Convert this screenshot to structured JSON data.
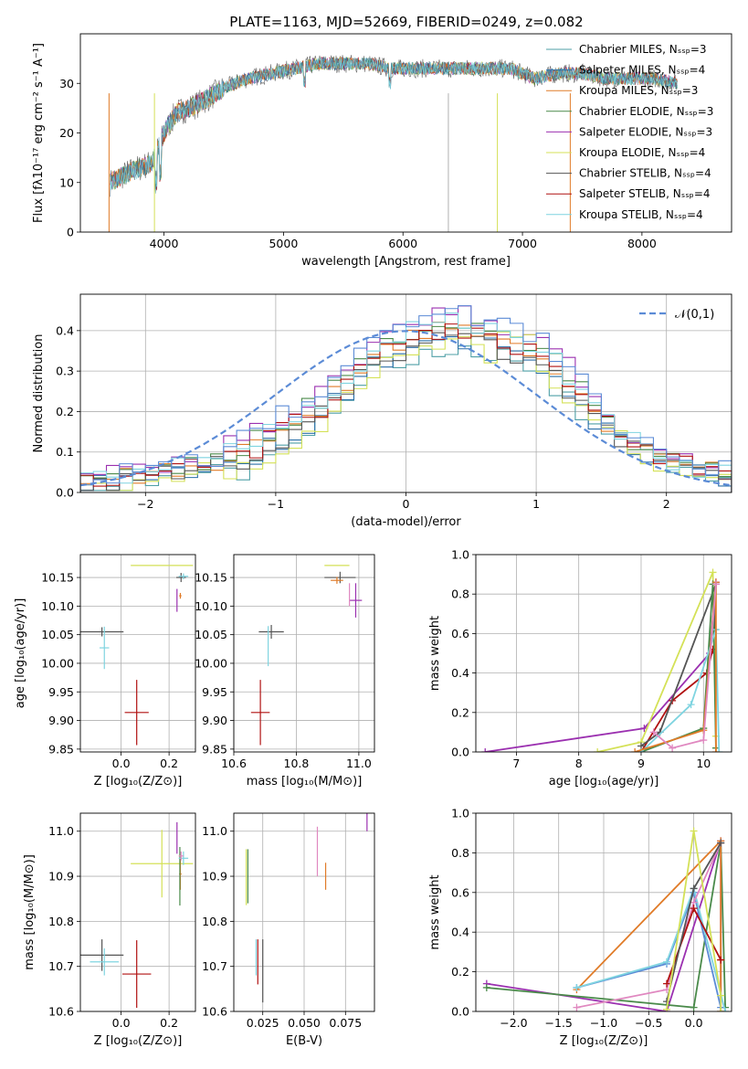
{
  "chart_data": [
    {
      "type": "line",
      "title": "PLATE=1163, MJD=52669, FIBERID=0249, z=0.082",
      "xlabel": "wavelength [Angstrom, rest frame]",
      "ylabel": "Flux [fλ10⁻¹⁷ erg cm⁻² s⁻¹ A⁻¹]",
      "xlim": [
        3300,
        8750
      ],
      "ylim": [
        0,
        40
      ],
      "xticks": [
        4000,
        5000,
        6000,
        7000,
        8000
      ],
      "yticks": [
        0,
        10,
        20,
        30
      ],
      "legend_position": "right",
      "series": [
        {
          "name": "Chabrier MILES, Nₛₛₚ=3",
          "color": "#4e9fa6"
        },
        {
          "name": "Salpeter MILES, Nₛₛₚ=4",
          "color": "#2a6fa8"
        },
        {
          "name": "Kroupa MILES, Nₛₛₚ=3",
          "color": "#e07b28"
        },
        {
          "name": "Chabrier ELODIE, Nₛₛₚ=3",
          "color": "#4a8a4a"
        },
        {
          "name": "Salpeter ELODIE, Nₛₛₚ=3",
          "color": "#9b30b0"
        },
        {
          "name": "Kroupa ELODIE, Nₛₛₚ=4",
          "color": "#d4e157"
        },
        {
          "name": "Chabrier STELIB, Nₛₛₚ=4",
          "color": "#555555"
        },
        {
          "name": "Salpeter STELIB, Nₛₛₚ=4",
          "color": "#b01010"
        },
        {
          "name": "Kroupa STELIB, Nₛₛₚ=4",
          "color": "#7fd4e0"
        }
      ],
      "spectrum_continuum": {
        "x": [
          3550,
          3700,
          3900,
          4000,
          4100,
          4300,
          4500,
          4700,
          4900,
          5100,
          5300,
          5500,
          5700,
          5900,
          6100,
          6300,
          6500,
          6700,
          6900,
          7100,
          7300,
          7500,
          7700,
          7900,
          8100,
          8300
        ],
        "y": [
          10,
          12,
          14,
          20,
          24,
          26,
          29,
          31,
          32,
          33,
          34,
          34,
          34,
          33,
          33,
          33,
          33,
          33,
          33,
          31,
          32,
          32,
          31,
          31,
          31,
          30
        ]
      }
    },
    {
      "type": "histogram",
      "xlabel": "(data-model)/error",
      "ylabel": "Normed distribution",
      "xlim": [
        -2.5,
        2.5
      ],
      "ylim": [
        0,
        0.49
      ],
      "xticks": [
        -2,
        -1,
        0,
        1,
        2
      ],
      "yticks": [
        0.0,
        0.1,
        0.2,
        0.3,
        0.4
      ],
      "grid": true,
      "legend_position": "top-right",
      "reference_curve": {
        "name": "𝒩(0,1)",
        "color": "#5b8bd6",
        "mean": 0,
        "sigma": 1
      },
      "bins": [
        -2.5,
        -2.4,
        -2.3,
        -2.2,
        -2.1,
        -2.0,
        -1.9,
        -1.8,
        -1.7,
        -1.6,
        -1.5,
        -1.4,
        -1.3,
        -1.2,
        -1.1,
        -1.0,
        -0.9,
        -0.8,
        -0.7,
        -0.6,
        -0.5,
        -0.4,
        -0.3,
        -0.2,
        -0.1,
        0.0,
        0.1,
        0.2,
        0.3,
        0.4,
        0.5,
        0.6,
        0.7,
        0.8,
        0.9,
        1.0,
        1.1,
        1.2,
        1.3,
        1.4,
        1.5,
        1.6,
        1.7,
        1.8,
        1.9,
        2.0,
        2.1,
        2.2,
        2.3,
        2.4,
        2.5
      ],
      "base_density": [
        0.02,
        0.025,
        0.03,
        0.035,
        0.04,
        0.045,
        0.05,
        0.055,
        0.06,
        0.065,
        0.07,
        0.08,
        0.095,
        0.11,
        0.13,
        0.15,
        0.17,
        0.19,
        0.21,
        0.24,
        0.27,
        0.3,
        0.33,
        0.35,
        0.37,
        0.38,
        0.39,
        0.4,
        0.4,
        0.4,
        0.39,
        0.38,
        0.37,
        0.36,
        0.35,
        0.33,
        0.3,
        0.27,
        0.24,
        0.2,
        0.17,
        0.14,
        0.12,
        0.1,
        0.085,
        0.075,
        0.065,
        0.055,
        0.05,
        0.045
      ]
    },
    {
      "type": "scatter",
      "xlabel": "Z [log₁₀(Z/Z⊙)]",
      "ylabel": "age  [log₁₀(age/yr)]",
      "xlim": [
        -0.17,
        0.31
      ],
      "ylim": [
        9.845,
        10.19
      ],
      "xticks": [
        0.0,
        0.2
      ],
      "yticks": [
        9.85,
        9.9,
        9.95,
        10.0,
        10.05,
        10.1,
        10.15
      ],
      "tick_labels_x": [
        "0.0",
        "0.2"
      ],
      "tick_labels_y": [
        "9.85",
        "9.90",
        "9.95",
        "10.00",
        "10.05",
        "10.10",
        "10.15"
      ],
      "grid": true,
      "points": [
        {
          "x": -0.08,
          "y": 10.055,
          "xerr": 0.09,
          "yerr": 0.008,
          "color": "#555555"
        },
        {
          "x": -0.07,
          "y": 10.027,
          "xerr": 0.02,
          "yerr": 0.037,
          "color": "#7fd4e0"
        },
        {
          "x": 0.065,
          "y": 9.914,
          "xerr": 0.05,
          "yerr": 0.057,
          "color": "#b01010"
        },
        {
          "x": 0.17,
          "y": 10.171,
          "xerr": 0.13,
          "yerr": 0.0,
          "color": "#d4e157"
        },
        {
          "x": 0.233,
          "y": 10.11,
          "xerr": 0.0,
          "yerr": 0.02,
          "color": "#9b30b0"
        },
        {
          "x": 0.247,
          "y": 10.118,
          "xerr": 0.005,
          "yerr": 0.005,
          "color": "#e07b28"
        },
        {
          "x": 0.25,
          "y": 10.15,
          "xerr": 0.02,
          "yerr": 0.008,
          "color": "#555555"
        },
        {
          "x": 0.26,
          "y": 10.152,
          "xerr": 0.02,
          "yerr": 0.005,
          "color": "#7fd4e0"
        }
      ]
    },
    {
      "type": "scatter",
      "xlabel": "mass [log₁₀(M/M⊙)]",
      "ylabel": "",
      "xlim": [
        10.6,
        11.05
      ],
      "ylim": [
        9.845,
        10.19
      ],
      "xticks": [
        10.6,
        10.8,
        11.0
      ],
      "yticks": [
        9.85,
        9.9,
        9.95,
        10.0,
        10.05,
        10.1,
        10.15
      ],
      "tick_labels_x": [
        "10.6",
        "10.8",
        "11.0"
      ],
      "tick_labels_y": [
        "9.85",
        "9.90",
        "9.95",
        "10.00",
        "10.05",
        "10.10",
        "10.15"
      ],
      "grid": true,
      "points": [
        {
          "x": 10.72,
          "y": 10.055,
          "xerr": 0.04,
          "yerr": 0.012,
          "color": "#555555"
        },
        {
          "x": 10.71,
          "y": 10.03,
          "xerr": 0.0,
          "yerr": 0.035,
          "color": "#7fd4e0"
        },
        {
          "x": 10.685,
          "y": 9.914,
          "xerr": 0.03,
          "yerr": 0.057,
          "color": "#b01010"
        },
        {
          "x": 10.93,
          "y": 10.171,
          "xerr": 0.04,
          "yerr": 0.0,
          "color": "#d4e157"
        },
        {
          "x": 10.94,
          "y": 10.15,
          "xerr": 0.05,
          "yerr": 0.01,
          "color": "#555555"
        },
        {
          "x": 10.93,
          "y": 10.145,
          "xerr": 0.02,
          "yerr": 0.006,
          "color": "#e07b28"
        },
        {
          "x": 10.99,
          "y": 10.11,
          "xerr": 0.02,
          "yerr": 0.03,
          "color": "#9b30b0"
        },
        {
          "x": 10.97,
          "y": 10.12,
          "xerr": 0.0,
          "yerr": 0.02,
          "color": "#e088c0"
        }
      ]
    },
    {
      "type": "line",
      "xlabel": "age  [log₁₀(age/yr)]",
      "ylabel": "mass weight",
      "xlim": [
        6.35,
        10.45
      ],
      "ylim": [
        0,
        1
      ],
      "xticks": [
        7,
        8,
        9,
        10
      ],
      "yticks": [
        0.0,
        0.2,
        0.4,
        0.6,
        0.8,
        1.0
      ],
      "grid": true,
      "series": [
        {
          "color": "#9b30b0",
          "x": [
            6.5,
            9.05,
            10.1,
            10.2
          ],
          "y": [
            0.0,
            0.12,
            0.5,
            0.86
          ]
        },
        {
          "color": "#d4e157",
          "x": [
            8.3,
            9.0,
            10.15,
            10.2
          ],
          "y": [
            0.0,
            0.05,
            0.91,
            0.08
          ]
        },
        {
          "color": "#b01010",
          "x": [
            9.0,
            9.5,
            10.05,
            10.15
          ],
          "y": [
            0.0,
            0.26,
            0.4,
            0.52
          ]
        },
        {
          "color": "#555555",
          "x": [
            9.0,
            9.3,
            10.2,
            10.18
          ],
          "y": [
            0.03,
            0.1,
            0.85,
            0.62
          ]
        },
        {
          "color": "#4a8a4a",
          "x": [
            9.0,
            10.0,
            10.15,
            10.2
          ],
          "y": [
            0.0,
            0.12,
            0.85,
            0.02
          ]
        },
        {
          "color": "#7fd4e0",
          "x": [
            9.0,
            9.8,
            10.2,
            10.25
          ],
          "y": [
            0.0,
            0.24,
            0.62,
            0.0
          ]
        },
        {
          "color": "#e07b28",
          "x": [
            8.9,
            10.0,
            10.2,
            10.2
          ],
          "y": [
            0.0,
            0.11,
            0.86,
            0.0
          ]
        },
        {
          "color": "#e088c0",
          "x": [
            9.2,
            9.5,
            10.0,
            10.2
          ],
          "y": [
            0.1,
            0.02,
            0.06,
            0.85
          ]
        }
      ]
    },
    {
      "type": "scatter",
      "xlabel": "Z [log₁₀(Z/Z⊙)]",
      "ylabel": "mass [log₁₀(M/M⊙)]",
      "xlim": [
        -0.17,
        0.31
      ],
      "ylim": [
        10.6,
        11.04
      ],
      "xticks": [
        0.0,
        0.2
      ],
      "yticks": [
        10.6,
        10.7,
        10.8,
        10.9,
        11.0
      ],
      "tick_labels_x": [
        "0.0",
        "0.2"
      ],
      "tick_labels_y": [
        "10.6",
        "10.7",
        "10.8",
        "10.9",
        "11.0"
      ],
      "grid": true,
      "points": [
        {
          "x": -0.08,
          "y": 10.725,
          "xerr": 0.09,
          "yerr": 0.035,
          "color": "#555555"
        },
        {
          "x": -0.07,
          "y": 10.71,
          "xerr": 0.06,
          "yerr": 0.03,
          "color": "#7fd4e0"
        },
        {
          "x": 0.065,
          "y": 10.683,
          "xerr": 0.06,
          "yerr": 0.075,
          "color": "#b01010"
        },
        {
          "x": 0.17,
          "y": 10.928,
          "xerr": 0.13,
          "yerr": 0.075,
          "color": "#d4e157"
        },
        {
          "x": 0.233,
          "y": 10.985,
          "xerr": 0.0,
          "yerr": 0.035,
          "color": "#9b30b0"
        },
        {
          "x": 0.247,
          "y": 10.905,
          "xerr": 0.005,
          "yerr": 0.035,
          "color": "#e07b28"
        },
        {
          "x": 0.245,
          "y": 10.9,
          "xerr": 0.0,
          "yerr": 0.065,
          "color": "#4a8a4a"
        },
        {
          "x": 0.26,
          "y": 10.94,
          "xerr": 0.02,
          "yerr": 0.015,
          "color": "#7fd4e0"
        },
        {
          "x": 0.25,
          "y": 10.945,
          "xerr": 0.01,
          "yerr": 0.01,
          "color": "#e088c0"
        }
      ]
    },
    {
      "type": "scatter",
      "xlabel": "E(B-V)",
      "ylabel": "",
      "xlim": [
        0.0075,
        0.0925
      ],
      "ylim": [
        10.6,
        11.04
      ],
      "xticks": [
        0.025,
        0.05,
        0.075
      ],
      "yticks": [
        10.6,
        10.7,
        10.8,
        10.9,
        11.0
      ],
      "tick_labels_x": [
        "0.025",
        "0.050",
        "0.075"
      ],
      "tick_labels_y": [
        "10.6",
        "10.7",
        "10.8",
        "10.9",
        "11.0"
      ],
      "grid": true,
      "points": [
        {
          "x": 0.015,
          "y": 10.898,
          "xerr": 0,
          "yerr": 0.062,
          "color": "#d4e157"
        },
        {
          "x": 0.016,
          "y": 10.9,
          "xerr": 0,
          "yerr": 0.06,
          "color": "#4a8a4a"
        },
        {
          "x": 0.021,
          "y": 10.72,
          "xerr": 0,
          "yerr": 0.04,
          "color": "#7fd4e0"
        },
        {
          "x": 0.022,
          "y": 10.71,
          "xerr": 0,
          "yerr": 0.05,
          "color": "#b01010"
        },
        {
          "x": 0.025,
          "y": 10.69,
          "xerr": 0,
          "yerr": 0.07,
          "color": "#555555"
        },
        {
          "x": 0.058,
          "y": 10.955,
          "xerr": 0,
          "yerr": 0.055,
          "color": "#e088c0"
        },
        {
          "x": 0.063,
          "y": 10.9,
          "xerr": 0,
          "yerr": 0.03,
          "color": "#e07b28"
        },
        {
          "x": 0.088,
          "y": 11.07,
          "xerr": 0,
          "yerr": 0.07,
          "color": "#9b30b0"
        }
      ]
    },
    {
      "type": "line",
      "xlabel": "Z [log₁₀(Z/Z⊙)]",
      "ylabel": "mass weight",
      "xlim": [
        -2.42,
        0.42
      ],
      "ylim": [
        0,
        1
      ],
      "xticks": [
        -2.0,
        -1.5,
        -1.0,
        -0.5,
        0.0
      ],
      "yticks": [
        0.0,
        0.2,
        0.4,
        0.6,
        0.8,
        1.0
      ],
      "tick_labels_x": [
        "−2.0",
        "−1.5",
        "−1.0",
        "−0.5",
        "0.0"
      ],
      "grid": true,
      "series": [
        {
          "color": "#9b30b0",
          "x": [
            -2.3,
            -0.3,
            0.3,
            0.3
          ],
          "y": [
            0.14,
            0.0,
            0.86,
            0.0
          ]
        },
        {
          "color": "#4a8a4a",
          "x": [
            -2.3,
            0.0,
            0.3,
            0.35
          ],
          "y": [
            0.12,
            0.02,
            0.85,
            0.02
          ]
        },
        {
          "color": "#e07b28",
          "x": [
            -1.3,
            0.3,
            0.3,
            0.3
          ],
          "y": [
            0.11,
            0.86,
            0.26,
            0.0
          ]
        },
        {
          "color": "#5b8bd6",
          "x": [
            -1.3,
            -0.3,
            0.0,
            0.3
          ],
          "y": [
            0.12,
            0.24,
            0.6,
            0.02
          ]
        },
        {
          "color": "#7fd4e0",
          "x": [
            -1.3,
            -0.3,
            0.0,
            0.35
          ],
          "y": [
            0.12,
            0.25,
            0.62,
            0.0
          ]
        },
        {
          "color": "#e088c0",
          "x": [
            -1.3,
            -0.3,
            0.0,
            0.3
          ],
          "y": [
            0.02,
            0.11,
            0.55,
            0.85
          ]
        },
        {
          "color": "#b01010",
          "x": [
            -0.3,
            0.0,
            0.3
          ],
          "y": [
            0.14,
            0.52,
            0.26
          ]
        },
        {
          "color": "#555555",
          "x": [
            -0.3,
            0.0,
            0.3
          ],
          "y": [
            0.05,
            0.62,
            0.85
          ]
        },
        {
          "color": "#d4e157",
          "x": [
            -0.3,
            0.0,
            0.3,
            0.3
          ],
          "y": [
            0.01,
            0.91,
            0.08,
            0.0
          ]
        }
      ]
    }
  ]
}
